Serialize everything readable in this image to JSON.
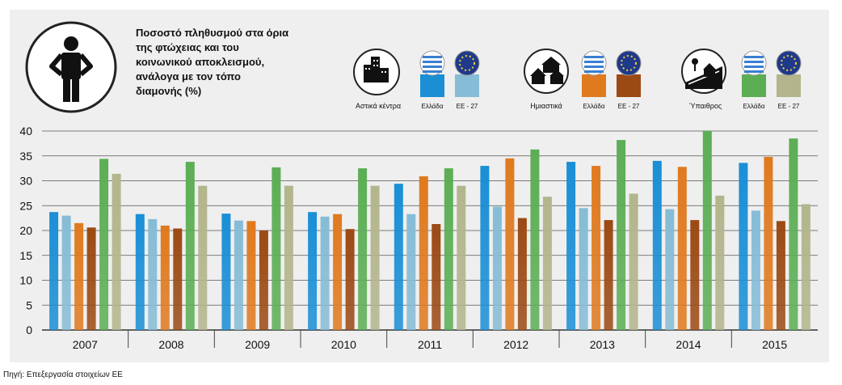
{
  "title": "Ποσοστό πληθυσμού στα όρια της φτώχειας και του κοινωνικού αποκλεισμού, ανάλογα με τον τόπο διαμονής (%)",
  "source": "Πηγή: Επεξεργασία στοιχείων ΕΕ",
  "legend": {
    "groups": [
      {
        "label": "Αστικά κέντρα",
        "icon": "city-buildings-icon",
        "greece_label": "Ελλάδα",
        "eu_label": "ΕΕ - 27"
      },
      {
        "label": "Ημιαστικά",
        "icon": "suburban-houses-icon",
        "greece_label": "Ελλάδα",
        "eu_label": "ΕΕ - 27"
      },
      {
        "label": "Ύπαιθρος",
        "icon": "rural-house-icon",
        "greece_label": "Ελλάδα",
        "eu_label": "ΕΕ - 27"
      }
    ]
  },
  "colors": {
    "urban_greece": "#1a8fd6",
    "urban_eu": "#86bcd6",
    "suburban_greece": "#e07a1f",
    "suburban_eu": "#9c4a14",
    "rural_greece": "#5cae55",
    "rural_eu": "#b3b58c"
  },
  "chart_data": {
    "type": "bar",
    "categories": [
      "2007",
      "2008",
      "2009",
      "2010",
      "2011",
      "2012",
      "2013",
      "2014",
      "2015"
    ],
    "ylim": [
      0,
      40
    ],
    "yticks": [
      0,
      5,
      10,
      15,
      20,
      25,
      30,
      35,
      40
    ],
    "grid": true,
    "series": [
      {
        "name": "Αστικά κέντρα - Ελλάδα",
        "values": [
          23.7,
          23.3,
          23.4,
          23.7,
          29.4,
          33.0,
          33.8,
          34.0,
          33.6
        ]
      },
      {
        "name": "Αστικά κέντρα - ΕΕ - 27",
        "values": [
          23.0,
          22.3,
          22.0,
          22.8,
          23.3,
          24.8,
          24.5,
          24.3,
          24.0
        ]
      },
      {
        "name": "Ημιαστικά - Ελλάδα",
        "values": [
          21.5,
          21.0,
          21.9,
          23.3,
          30.9,
          34.5,
          33.0,
          32.8,
          34.8
        ]
      },
      {
        "name": "Ημιαστικά - ΕΕ - 27",
        "values": [
          20.6,
          20.4,
          20.0,
          20.3,
          21.3,
          22.5,
          22.1,
          22.1,
          21.9
        ]
      },
      {
        "name": "Ύπαιθρος - Ελλάδα",
        "values": [
          34.4,
          33.8,
          32.7,
          32.5,
          32.5,
          36.3,
          38.2,
          40.0,
          38.5
        ]
      },
      {
        "name": "Ύπαιθρος - ΕΕ - 27",
        "values": [
          31.4,
          29.0,
          29.0,
          29.0,
          29.0,
          26.8,
          27.4,
          27.0,
          25.3
        ]
      }
    ]
  }
}
